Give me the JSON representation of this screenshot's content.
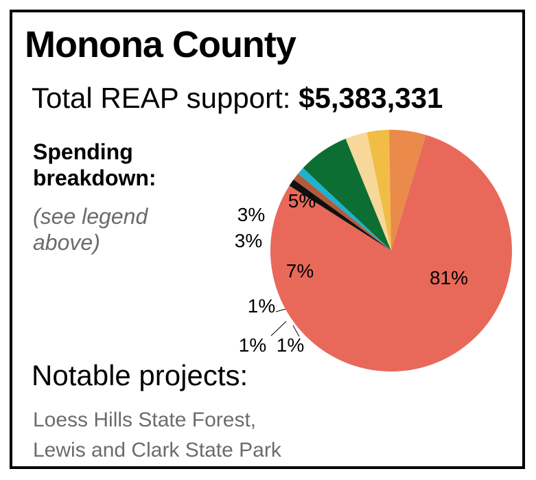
{
  "title": "Monona County",
  "total_label": "Total REAP support:",
  "total_value": "$5,383,331",
  "breakdown_line1": "Spending",
  "breakdown_line2": "breakdown:",
  "legend_note_line1": "(see legend",
  "legend_note_line2": "above)",
  "notable_heading": "Notable projects:",
  "projects": [
    "Loess Hills State Forest,",
    "Lewis and Clark State Park"
  ],
  "chart_data": {
    "type": "pie",
    "slices": [
      {
        "label": "81%",
        "value": 81,
        "color": "#e8695a"
      },
      {
        "label": "1%",
        "value": 1,
        "color": "#111111"
      },
      {
        "label": "1%",
        "value": 1,
        "color": "#b35a3c"
      },
      {
        "label": "1%",
        "value": 1,
        "color": "#1fb2cf"
      },
      {
        "label": "7%",
        "value": 7,
        "color": "#0c6e33"
      },
      {
        "label": "3%",
        "value": 3,
        "color": "#f7d89a"
      },
      {
        "label": "3%",
        "value": 3,
        "color": "#f2bd45"
      },
      {
        "label": "5%",
        "value": 5,
        "color": "#ea8a4b"
      }
    ]
  }
}
